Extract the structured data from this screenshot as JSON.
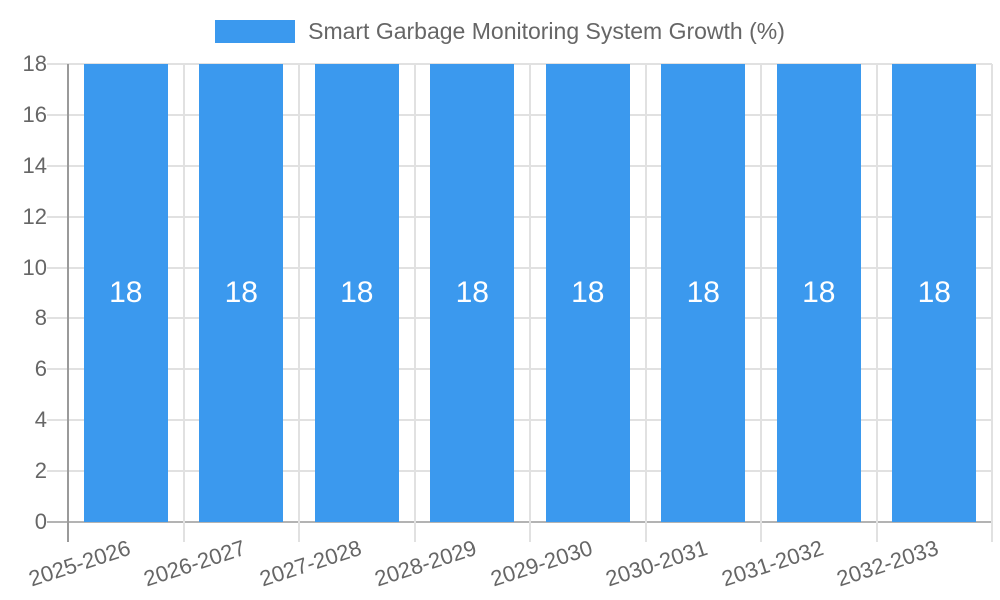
{
  "chart_data": {
    "type": "bar",
    "title": "Smart Garbage Monitoring System Growth (%)",
    "categories": [
      "2025-2026",
      "2026-2027",
      "2027-2028",
      "2028-2029",
      "2029-2030",
      "2030-2031",
      "2031-2032",
      "2032-2033"
    ],
    "values": [
      18,
      18,
      18,
      18,
      18,
      18,
      18,
      18
    ],
    "bar_value_labels": [
      "18",
      "18",
      "18",
      "18",
      "18",
      "18",
      "18",
      "18"
    ],
    "xlabel": "",
    "ylabel": "",
    "ylim": [
      0,
      18
    ],
    "yticks": [
      0,
      2,
      4,
      6,
      8,
      10,
      12,
      14,
      16,
      18
    ],
    "grid": true,
    "legend_position": "top"
  },
  "colors": {
    "bar": "#3B99EE",
    "grid": "#E1E1E1",
    "baseline": "#B3B3B3",
    "axis": "#9A9A9A",
    "tick_text": "#666666",
    "legend_text": "#666666",
    "bar_label": "#FFFFFF",
    "background": "#FFFFFF"
  }
}
